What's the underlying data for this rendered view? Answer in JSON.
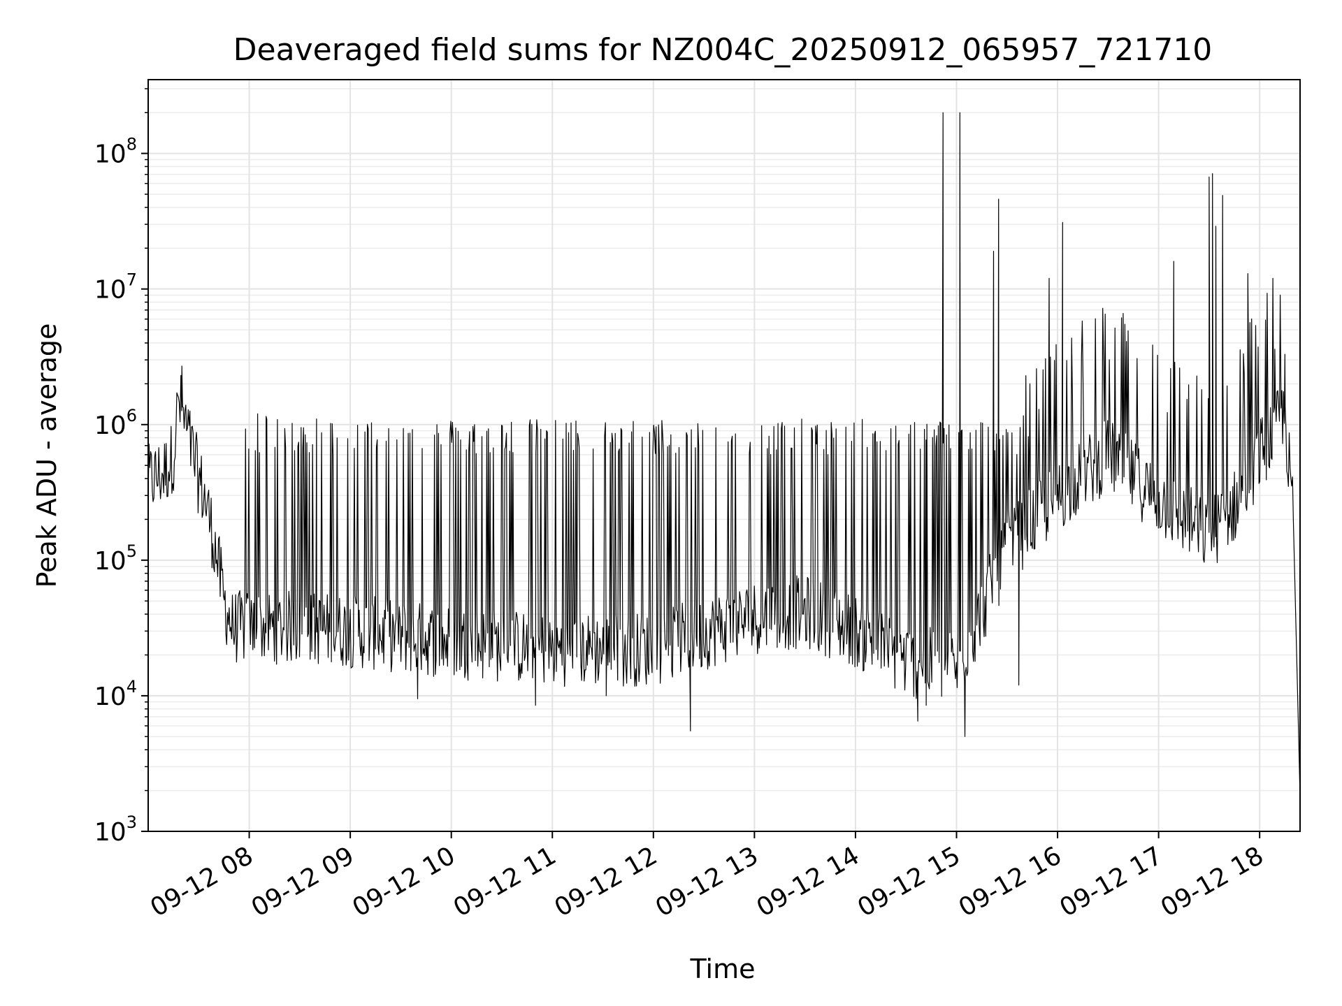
{
  "chart_data": {
    "type": "line",
    "title": "Deaveraged field sums for NZ004C_20250912_065957_721710",
    "xlabel": "Time",
    "ylabel": "Peak ADU - average",
    "yscale": "log",
    "xlim": [
      "2025-09-12 07:00",
      "2025-09-12 18:24"
    ],
    "ylim": [
      1000,
      350000000
    ],
    "grid": true,
    "line_color": "#000000",
    "x_tick_labels": [
      "09-12 08",
      "09-12 09",
      "09-12 10",
      "09-12 11",
      "09-12 12",
      "09-12 13",
      "09-12 14",
      "09-12 15",
      "09-12 16",
      "09-12 17",
      "09-12 18"
    ],
    "y_tick_labels": [
      {
        "base": "10",
        "exp": "3"
      },
      {
        "base": "10",
        "exp": "4"
      },
      {
        "base": "10",
        "exp": "5"
      },
      {
        "base": "10",
        "exp": "6"
      },
      {
        "base": "10",
        "exp": "7"
      },
      {
        "base": "10",
        "exp": "8"
      }
    ],
    "series": [
      {
        "baseline": [
          [
            "2025-09-12 07:00",
            380000
          ],
          [
            "2025-09-12 07:10",
            450000
          ],
          [
            "2025-09-12 07:15",
            600000
          ],
          [
            "2025-09-12 07:18",
            1500000
          ],
          [
            "2025-09-12 07:22",
            1000000
          ],
          [
            "2025-09-12 07:30",
            400000
          ],
          [
            "2025-09-12 07:35",
            250000
          ],
          [
            "2025-09-12 07:40",
            120000
          ],
          [
            "2025-09-12 07:45",
            50000
          ],
          [
            "2025-09-12 07:50",
            32000
          ],
          [
            "2025-09-12 08:30",
            32000
          ],
          [
            "2025-09-12 09:00",
            30000
          ],
          [
            "2025-09-12 10:00",
            25000
          ],
          [
            "2025-09-12 11:00",
            22000
          ],
          [
            "2025-09-12 12:00",
            22000
          ],
          [
            "2025-09-12 13:00",
            38000
          ],
          [
            "2025-09-12 13:30",
            42000
          ],
          [
            "2025-09-12 14:00",
            30000
          ],
          [
            "2025-09-12 14:30",
            18000
          ],
          [
            "2025-09-12 15:00",
            16000
          ],
          [
            "2025-09-12 15:10",
            30000
          ],
          [
            "2025-09-12 15:30",
            120000
          ],
          [
            "2025-09-12 16:00",
            300000
          ],
          [
            "2025-09-12 16:30",
            600000
          ],
          [
            "2025-09-12 17:00",
            280000
          ],
          [
            "2025-09-12 17:30",
            150000
          ],
          [
            "2025-09-12 17:45",
            250000
          ],
          [
            "2025-09-12 18:00",
            600000
          ],
          [
            "2025-09-12 18:15",
            1200000
          ],
          [
            "2025-09-12 18:20",
            200000
          ],
          [
            "2025-09-12 18:23",
            6000
          ],
          [
            "2025-09-12 18:24",
            1800
          ]
        ],
        "peaks": [
          [
            "2025-09-12 07:20",
            2700000
          ],
          [
            "2025-09-12 08:05",
            1200000
          ],
          [
            "2025-09-12 08:10",
            1150000
          ],
          [
            "2025-09-12 08:40",
            1100000
          ],
          [
            "2025-09-12 14:52",
            200000000
          ],
          [
            "2025-09-12 15:02",
            200000000
          ],
          [
            "2025-09-12 15:22",
            19000000
          ],
          [
            "2025-09-12 15:25",
            46000000
          ],
          [
            "2025-09-12 15:55",
            12000000
          ],
          [
            "2025-09-12 16:03",
            31000000
          ],
          [
            "2025-09-12 16:40",
            5500000
          ],
          [
            "2025-09-12 17:09",
            16000000
          ],
          [
            "2025-09-12 17:30",
            67000000
          ],
          [
            "2025-09-12 17:32",
            71000000
          ],
          [
            "2025-09-12 17:34",
            29000000
          ],
          [
            "2025-09-12 17:38",
            49000000
          ],
          [
            "2025-09-12 17:53",
            13000000
          ],
          [
            "2025-09-12 18:09",
            3600000
          ],
          [
            "2025-09-12 18:15",
            3300000
          ]
        ],
        "dips": [
          [
            "2025-09-12 08:15",
            18000
          ],
          [
            "2025-09-12 09:40",
            9500
          ],
          [
            "2025-09-12 10:50",
            8500
          ],
          [
            "2025-09-12 11:32",
            10000
          ],
          [
            "2025-09-12 12:22",
            5500
          ],
          [
            "2025-09-12 14:37",
            6500
          ],
          [
            "2025-09-12 14:42",
            8500
          ],
          [
            "2025-09-12 15:05",
            5000
          ],
          [
            "2025-09-12 15:37",
            12000
          ]
        ]
      }
    ]
  }
}
